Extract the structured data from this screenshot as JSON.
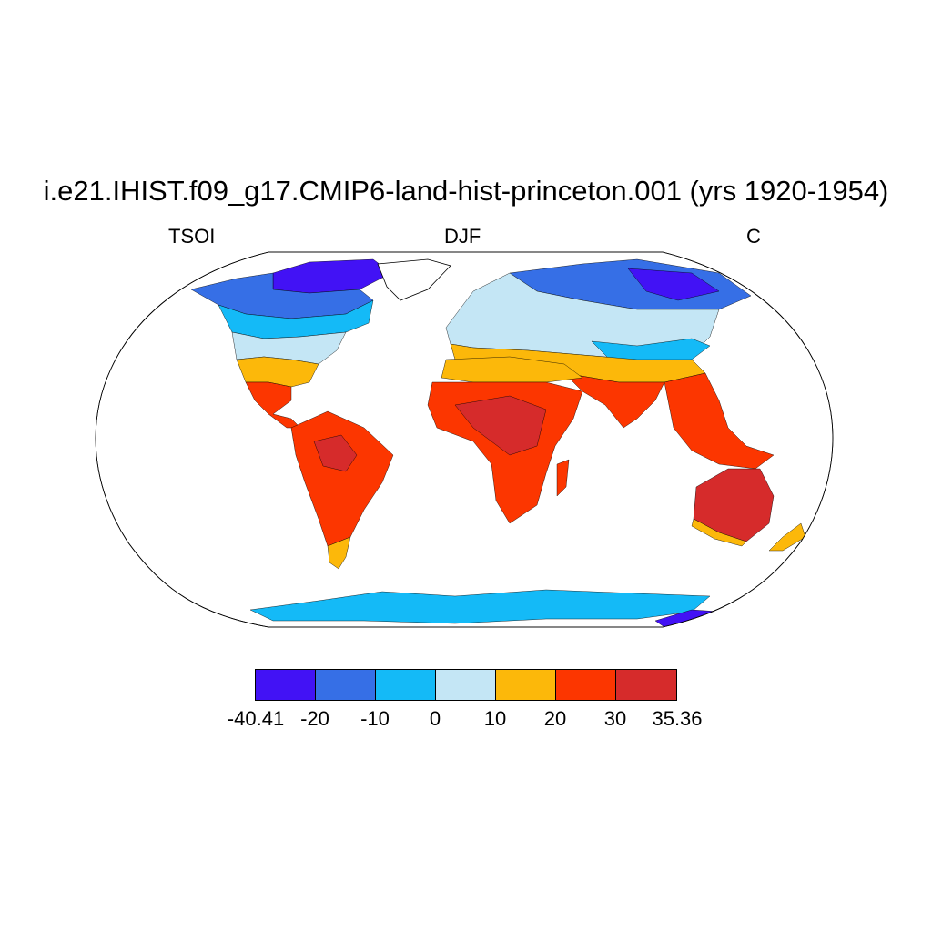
{
  "title": "i.e21.IHIST.f09_g17.CMIP6-land-hist-princeton.001 (yrs 1920-1954)",
  "left_label": "TSOI",
  "center_label": "DJF",
  "right_label": "C",
  "colorbar": {
    "labels": [
      "-40.41",
      "-20",
      "-10",
      "0",
      "10",
      "20",
      "30",
      "35.36"
    ],
    "colors": [
      "#4212f5",
      "#366fe6",
      "#14baf7",
      "#c4e6f5",
      "#fcb80a",
      "#fc3600",
      "#d62b2b"
    ]
  },
  "map_colors": {
    "ocean": "#ffffff",
    "coast": "#000000",
    "very_cold": "#4212f5",
    "cold": "#366fe6",
    "cool": "#14baf7",
    "mild": "#c4e6f5",
    "warm": "#fcb80a",
    "hot": "#fc3600",
    "hottest": "#d62b2b"
  }
}
